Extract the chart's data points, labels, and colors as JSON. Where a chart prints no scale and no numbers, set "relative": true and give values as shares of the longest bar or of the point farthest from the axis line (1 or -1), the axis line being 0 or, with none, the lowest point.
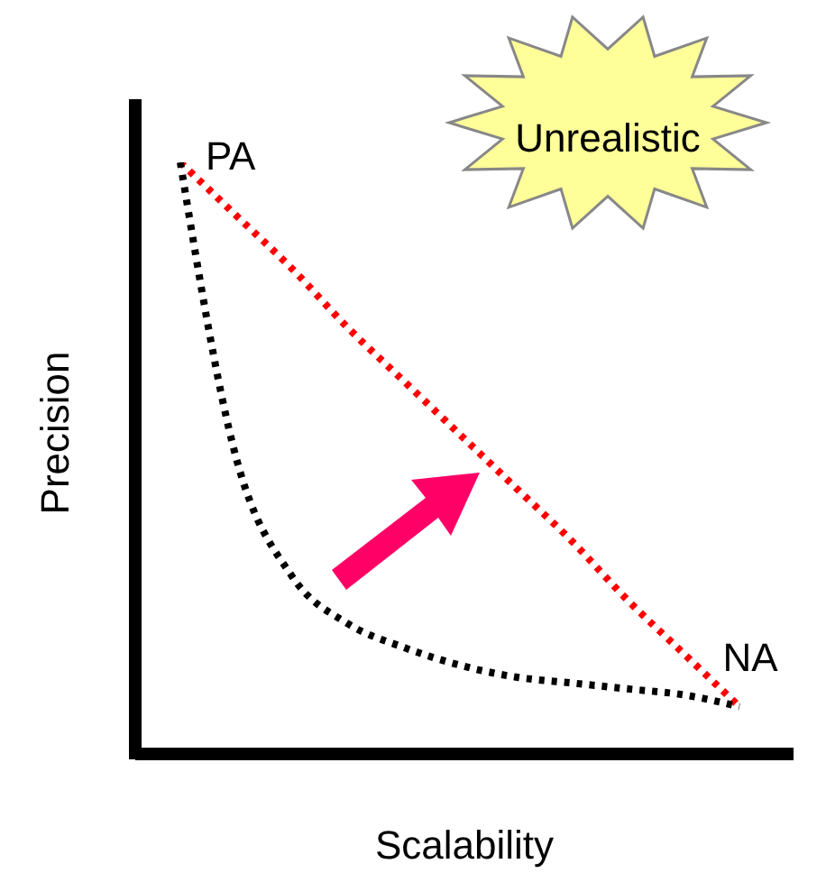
{
  "chart_data": {
    "type": "line",
    "xlabel": "Scalability",
    "ylabel": "Precision",
    "relative": true,
    "line_style": "dotted",
    "marker": "none",
    "categories": [
      null,
      null,
      null,
      null,
      null,
      null,
      null,
      null,
      null,
      null,
      null
    ],
    "series": [
      {
        "color": "#ff0000",
        "values": [
          1,
          0.91,
          0.82,
          0.72,
          0.63,
          0.54,
          0.45,
          0.36,
          0.26,
          0.17,
          0.08
        ]
      },
      {
        "color": "#000000",
        "values": [
          1,
          0.5,
          0.3,
          0.22,
          0.18,
          0.15,
          0.13,
          0.12,
          0.11,
          0.1,
          0.08
        ]
      }
    ],
    "annotations": [
      "PA",
      "NA",
      "Unrealistic"
    ]
  }
}
